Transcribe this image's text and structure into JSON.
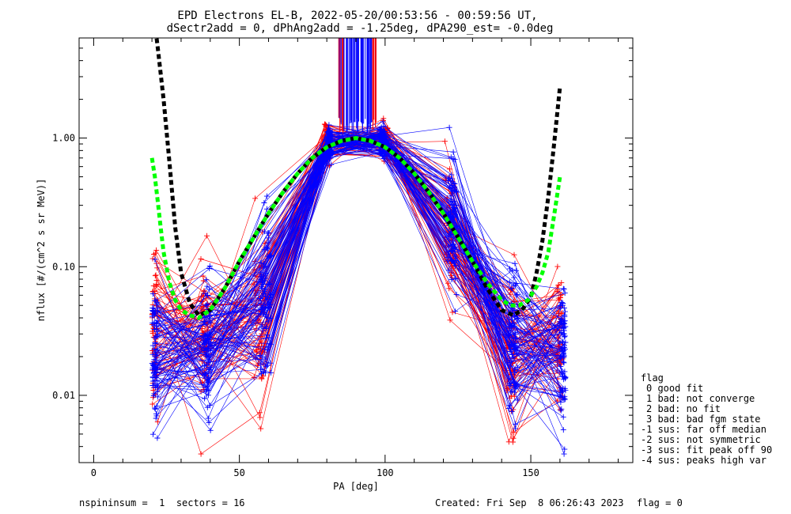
{
  "header": {
    "title_line1": "EPD Electrons EL-B, 2022-05-20/00:53:56 - 00:59:56 UT,",
    "title_line2": "dSectr2add = 0, dPhAng2add = -1.25deg, dPA290_est=  -0.0deg"
  },
  "legend": {
    "heading": "flag",
    "items": [
      "0 good fit",
      "1 bad: not converge",
      "2 bad: no fit",
      "3 bad: bad fgm state",
      "-1 sus: far off median",
      "-2 sus: not symmetric",
      "-3 sus: fit peak off 90",
      "-4 sus: peaks high var"
    ]
  },
  "footer": {
    "left": "nspininsum =  1  sectors = 16",
    "created": "Created: Fri Sep  8 06:26:43 2023",
    "flag": "flag = 0"
  },
  "colors": {
    "red": "#ff0000",
    "blue": "#0000ff",
    "black_fit": "#000000",
    "green_fit": "#00ff00"
  },
  "chart_data": {
    "type": "line",
    "title": "EPD Electrons EL-B, 2022-05-20/00:53:56 - 00:59:56 UT, dSectr2add = 0, dPhAng2add = -1.25deg, dPA290_est=  -0.0deg",
    "xlabel": "PA [deg]",
    "ylabel": "nflux [#/(cm^2 s sr MeV)]",
    "xlim": [
      -5,
      185
    ],
    "ylim": [
      0.003,
      6.0
    ],
    "yscale": "log",
    "xticks": [
      0,
      50,
      100,
      150
    ],
    "yticks": [
      0.01,
      0.1,
      1.0
    ],
    "ytick_labels": [
      "0.01",
      "0.10",
      "1.00"
    ],
    "grid": false,
    "series": [
      {
        "color": "red",
        "style": "thin-line-with-plus-markers",
        "x": [
          21,
          38,
          57,
          80,
          100,
          122,
          143,
          160
        ],
        "y": [
          0.03,
          0.03,
          0.04,
          0.9,
          0.95,
          0.2,
          0.02,
          0.025
        ]
      },
      {
        "color": "blue",
        "style": "thin-line-with-plus-markers",
        "x": [
          21,
          39,
          59,
          81,
          99,
          123,
          144,
          161
        ],
        "y": [
          0.02,
          0.022,
          0.06,
          0.9,
          0.95,
          0.2,
          0.025,
          0.02
        ]
      },
      {
        "color": "black_fit",
        "style": "thick-dashed",
        "x": [
          20,
          22,
          24,
          26,
          28,
          30,
          33,
          36,
          40,
          45,
          50,
          55,
          60,
          65,
          70,
          75,
          80,
          85,
          90,
          95,
          100,
          105,
          110,
          115,
          120,
          125,
          130,
          135,
          140,
          144,
          147,
          150,
          152,
          154,
          156,
          158,
          160
        ],
        "y": [
          12.0,
          5.0,
          2.0,
          0.65,
          0.2,
          0.09,
          0.052,
          0.042,
          0.046,
          0.068,
          0.11,
          0.17,
          0.26,
          0.38,
          0.53,
          0.7,
          0.85,
          0.95,
          1.0,
          0.95,
          0.85,
          0.7,
          0.53,
          0.38,
          0.26,
          0.17,
          0.11,
          0.068,
          0.046,
          0.042,
          0.046,
          0.058,
          0.09,
          0.16,
          0.35,
          0.9,
          2.5
        ]
      },
      {
        "color": "green_fit",
        "style": "thick-dashed",
        "x": [
          20,
          21,
          22,
          23,
          24,
          26,
          28,
          30,
          33,
          36,
          40,
          45,
          50,
          55,
          60,
          65,
          70,
          75,
          80,
          85,
          90,
          95,
          100,
          105,
          110,
          115,
          120,
          125,
          130,
          135,
          140,
          143,
          146,
          149,
          152,
          154,
          156,
          158,
          160
        ],
        "y": [
          0.7,
          0.5,
          0.32,
          0.2,
          0.13,
          0.075,
          0.055,
          0.046,
          0.042,
          0.04,
          0.046,
          0.068,
          0.11,
          0.17,
          0.26,
          0.38,
          0.53,
          0.7,
          0.85,
          0.95,
          1.0,
          0.95,
          0.85,
          0.7,
          0.53,
          0.38,
          0.26,
          0.17,
          0.11,
          0.075,
          0.055,
          0.05,
          0.05,
          0.055,
          0.07,
          0.09,
          0.13,
          0.25,
          0.5
        ]
      }
    ],
    "saturated_region": {
      "x_range": [
        84,
        97
      ],
      "y_from": 1.2,
      "colors": [
        "red",
        "blue"
      ]
    }
  }
}
